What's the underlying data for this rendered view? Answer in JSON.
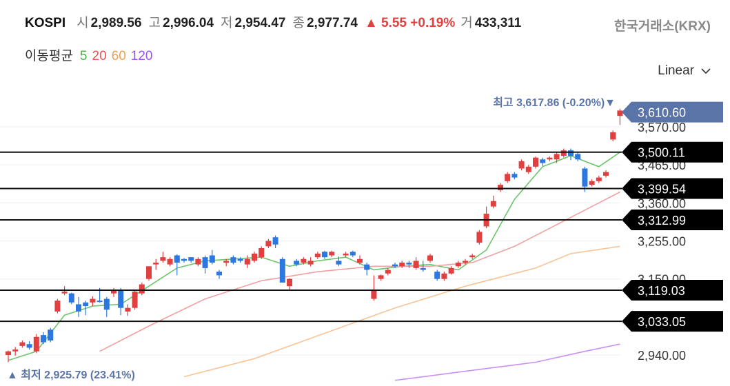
{
  "header": {
    "symbol": "KOSPI",
    "open_label": "시",
    "open": "2,989.56",
    "high_label": "고",
    "high": "2,996.04",
    "low_label": "저",
    "low": "2,954.47",
    "close_label": "종",
    "close": "2,977.74",
    "change": "▲ 5.55 +0.19%",
    "volume_label": "거",
    "volume": "433,311",
    "exchange": "한국거래소(KRX)"
  },
  "ma_legend": {
    "label": "이동평균",
    "items": [
      {
        "period": "5",
        "color": "#4bb543"
      },
      {
        "period": "20",
        "color": "#ef5350"
      },
      {
        "period": "60",
        "color": "#f0a050"
      },
      {
        "period": "120",
        "color": "#a050f0"
      }
    ]
  },
  "scale_button": {
    "label": "Linear"
  },
  "annotations": {
    "high_note": "최고 3,617.86 (-0.20%)▼",
    "low_note": "▲ 최저 2,925.79 (23.41%)"
  },
  "colors": {
    "up": "#e0403f",
    "down": "#2d78e0",
    "price_tag": "#5b74a8",
    "level_tag": "#000000"
  },
  "chart_data": {
    "type": "candlestick",
    "title": "KOSPI",
    "ylim": [
      2900,
      3700
    ],
    "y_ticks": [
      {
        "value": 2940,
        "label": "2,940.00"
      },
      {
        "value": 3150,
        "label": "3,150.00"
      },
      {
        "value": 3255,
        "label": "3,255.00"
      },
      {
        "value": 3360,
        "label": "3,360.00"
      },
      {
        "value": 3465,
        "label": "3,465.00"
      },
      {
        "value": 3570,
        "label": "3,570.00"
      }
    ],
    "current_price": {
      "value": 3610.6,
      "label": "3,610.60"
    },
    "horizontal_levels": [
      {
        "value": 3500.11,
        "label": "3,500.11"
      },
      {
        "value": 3399.54,
        "label": "3,399.54"
      },
      {
        "value": 3312.99,
        "label": "3,312.99"
      },
      {
        "value": 3119.03,
        "label": "3,119.03"
      },
      {
        "value": 3033.05,
        "label": "3,033.05"
      }
    ],
    "candles": [
      [
        2940,
        2950,
        2920,
        2952
      ],
      [
        2950,
        2955,
        2938,
        2962
      ],
      [
        2965,
        2975,
        2960,
        2980
      ],
      [
        2970,
        2960,
        2955,
        2978
      ],
      [
        2950,
        2990,
        2945,
        2998
      ],
      [
        2995,
        2975,
        2970,
        3003
      ],
      [
        3010,
        2980,
        2975,
        3015
      ],
      [
        3060,
        3090,
        3055,
        3095
      ],
      [
        3110,
        3115,
        3105,
        3130
      ],
      [
        3110,
        3085,
        3080,
        3112
      ],
      [
        3080,
        3060,
        3045,
        3100
      ],
      [
        3085,
        3075,
        3050,
        3090
      ],
      [
        3085,
        3095,
        3075,
        3102
      ],
      [
        3090,
        3088,
        3085,
        3125
      ],
      [
        3095,
        3065,
        3045,
        3100
      ],
      [
        3110,
        3120,
        3100,
        3125
      ],
      [
        3120,
        3070,
        3050,
        3125
      ],
      [
        3060,
        3070,
        3048,
        3080
      ],
      [
        3070,
        3115,
        3065,
        3120
      ],
      [
        3110,
        3135,
        3105,
        3140
      ],
      [
        3150,
        3185,
        3145,
        3185
      ],
      [
        3190,
        3195,
        3175,
        3205
      ],
      [
        3200,
        3210,
        3195,
        3225
      ],
      [
        3190,
        3205,
        3185,
        3210
      ],
      [
        3215,
        3195,
        3160,
        3218
      ],
      [
        3205,
        3200,
        3195,
        3208
      ],
      [
        3210,
        3200,
        3195,
        3210
      ],
      [
        3190,
        3205,
        3185,
        3210
      ],
      [
        3210,
        3180,
        3165,
        3215
      ],
      [
        3215,
        3195,
        3190,
        3230
      ],
      [
        3170,
        3160,
        3150,
        3175
      ],
      [
        3195,
        3200,
        3185,
        3205
      ],
      [
        3210,
        3195,
        3190,
        3215
      ],
      [
        3205,
        3200,
        3195,
        3210
      ],
      [
        3190,
        3205,
        3180,
        3215
      ],
      [
        3200,
        3220,
        3195,
        3225
      ],
      [
        3210,
        3235,
        3205,
        3240
      ],
      [
        3240,
        3255,
        3235,
        3260
      ],
      [
        3265,
        3245,
        3235,
        3270
      ],
      [
        3205,
        3140,
        3140,
        3210
      ],
      [
        3130,
        3150,
        3120,
        3152
      ],
      [
        3200,
        3190,
        3185,
        3205
      ],
      [
        3195,
        3205,
        3190,
        3210
      ],
      [
        3190,
        3200,
        3185,
        3210
      ],
      [
        3210,
        3220,
        3205,
        3225
      ],
      [
        3225,
        3210,
        3205,
        3228
      ],
      [
        3215,
        3225,
        3210,
        3228
      ],
      [
        3200,
        3190,
        3185,
        3212
      ],
      [
        3215,
        3220,
        3210,
        3225
      ],
      [
        3225,
        3215,
        3210,
        3228
      ],
      [
        3195,
        3205,
        3190,
        3215
      ],
      [
        3190,
        3175,
        3160,
        3195
      ],
      [
        3095,
        3120,
        3090,
        3160
      ],
      [
        3150,
        3160,
        3145,
        3162
      ],
      [
        3165,
        3175,
        3160,
        3180
      ],
      [
        3190,
        3185,
        3180,
        3195
      ],
      [
        3185,
        3195,
        3180,
        3200
      ],
      [
        3195,
        3190,
        3180,
        3200
      ],
      [
        3180,
        3200,
        3175,
        3210
      ],
      [
        3180,
        3175,
        3170,
        3200
      ],
      [
        3200,
        3215,
        3195,
        3220
      ],
      [
        3170,
        3150,
        3145,
        3175
      ],
      [
        3150,
        3165,
        3145,
        3170
      ],
      [
        3165,
        3180,
        3162,
        3185
      ],
      [
        3185,
        3195,
        3180,
        3200
      ],
      [
        3195,
        3200,
        3190,
        3205
      ],
      [
        3210,
        3215,
        3205,
        3220
      ],
      [
        3250,
        3280,
        3245,
        3285
      ],
      [
        3295,
        3330,
        3290,
        3350
      ],
      [
        3350,
        3365,
        3345,
        3380
      ],
      [
        3395,
        3410,
        3390,
        3415
      ],
      [
        3420,
        3440,
        3415,
        3445
      ],
      [
        3440,
        3430,
        3425,
        3445
      ],
      [
        3455,
        3475,
        3450,
        3480
      ],
      [
        3445,
        3460,
        3440,
        3465
      ],
      [
        3460,
        3485,
        3455,
        3488
      ],
      [
        3480,
        3470,
        3462,
        3485
      ],
      [
        3480,
        3485,
        3475,
        3488
      ],
      [
        3480,
        3495,
        3470,
        3500
      ],
      [
        3490,
        3505,
        3485,
        3510
      ],
      [
        3505,
        3490,
        3478,
        3510
      ],
      [
        3495,
        3480,
        3475,
        3498
      ],
      [
        3455,
        3405,
        3390,
        3460
      ],
      [
        3410,
        3420,
        3405,
        3425
      ],
      [
        3420,
        3430,
        3415,
        3435
      ],
      [
        3435,
        3445,
        3430,
        3450
      ],
      [
        3535,
        3555,
        3530,
        3560
      ],
      [
        3600,
        3615,
        3575,
        3620
      ]
    ],
    "moving_averages": [
      {
        "period": 5,
        "color": "#6cc56c",
        "values": [
          [
            0,
            2925
          ],
          [
            4,
            2950
          ],
          [
            8,
            3050
          ],
          [
            12,
            3075
          ],
          [
            16,
            3080
          ],
          [
            20,
            3130
          ],
          [
            24,
            3180
          ],
          [
            28,
            3200
          ],
          [
            32,
            3205
          ],
          [
            36,
            3210
          ],
          [
            40,
            3185
          ],
          [
            44,
            3200
          ],
          [
            48,
            3210
          ],
          [
            52,
            3175
          ],
          [
            56,
            3185
          ],
          [
            60,
            3190
          ],
          [
            64,
            3175
          ],
          [
            68,
            3230
          ],
          [
            72,
            3370
          ],
          [
            76,
            3460
          ],
          [
            80,
            3490
          ],
          [
            84,
            3460
          ],
          [
            87,
            3500
          ]
        ]
      },
      {
        "period": 20,
        "color": "#f0a0a0",
        "values": [
          [
            13,
            2950
          ],
          [
            20,
            3020
          ],
          [
            28,
            3095
          ],
          [
            36,
            3145
          ],
          [
            44,
            3170
          ],
          [
            52,
            3185
          ],
          [
            60,
            3185
          ],
          [
            66,
            3195
          ],
          [
            72,
            3240
          ],
          [
            78,
            3300
          ],
          [
            84,
            3360
          ],
          [
            87,
            3390
          ]
        ]
      },
      {
        "period": 60,
        "color": "#f7c495",
        "values": [
          [
            25,
            2880
          ],
          [
            35,
            2930
          ],
          [
            45,
            3000
          ],
          [
            55,
            3070
          ],
          [
            65,
            3130
          ],
          [
            75,
            3180
          ],
          [
            80,
            3220
          ],
          [
            87,
            3240
          ]
        ]
      },
      {
        "period": 120,
        "color": "#c890f5",
        "values": [
          [
            55,
            2870
          ],
          [
            65,
            2895
          ],
          [
            75,
            2920
          ],
          [
            82,
            2950
          ],
          [
            87,
            2970
          ]
        ]
      }
    ]
  }
}
